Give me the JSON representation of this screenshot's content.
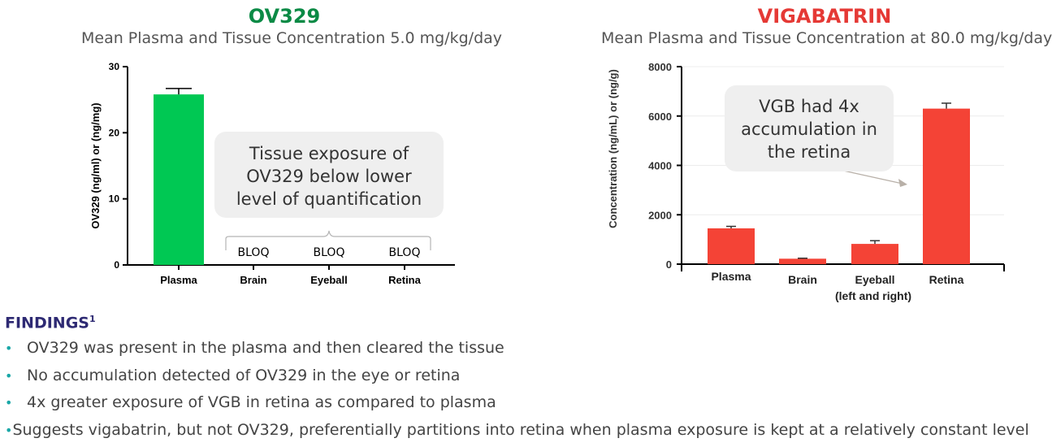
{
  "chart_data": [
    {
      "type": "bar",
      "title": "OV329",
      "subtitle": "Mean Plasma and Tissue Concentration 5.0 mg/kg/day",
      "ylabel": "OV329 (ng/ml) or (ng/mg)",
      "xlabel": "",
      "categories": [
        "Plasma",
        "Brain",
        "Eyeball",
        "Retina"
      ],
      "values": [
        25.8,
        null,
        null,
        null
      ],
      "errors": [
        0.9,
        null,
        null,
        null
      ],
      "value_labels": [
        "",
        "BLOQ",
        "BLOQ",
        "BLOQ"
      ],
      "ylim": [
        0,
        30
      ],
      "yticks": [
        0,
        10,
        20,
        30
      ],
      "bar_color": "#00c853",
      "title_color": "#0a8a45",
      "annotation": "Tissue exposure of OV329 below lower level of quantification",
      "annotation_lines": [
        "Tissue exposure of",
        "OV329 below lower",
        "level of quantification"
      ],
      "grid": false
    },
    {
      "type": "bar",
      "title": "VIGABATRIN",
      "subtitle": "Mean Plasma and Tissue Concentration at 80.0 mg/kg/day",
      "ylabel": "Concentration (ng/mL) or (ng/g)",
      "xlabel": "",
      "categories": [
        "Plasma",
        "Brain",
        "Eyeball",
        "Retina"
      ],
      "category_sublabels": [
        "",
        "",
        "(left and right)",
        ""
      ],
      "values": [
        1450,
        220,
        820,
        6300
      ],
      "errors": [
        80,
        20,
        130,
        220
      ],
      "ylim": [
        0,
        8000
      ],
      "yticks": [
        0,
        2000,
        4000,
        6000,
        8000
      ],
      "bar_color": "#f44336",
      "title_color": "#e53935",
      "annotation": "VGB had 4x accumulation in the retina",
      "annotation_lines": [
        "VGB had 4x",
        "accumulation in",
        "the retina"
      ],
      "grid": true
    }
  ],
  "findings": {
    "heading": "FINDINGS",
    "superscript": "1",
    "bullet_color": "#1aa7a7",
    "items": [
      "OV329 was present in the plasma and then cleared the tissue",
      "No accumulation detected of OV329 in the eye or retina",
      "4x greater exposure of VGB in retina as compared to plasma",
      "Suggests vigabatrin, but not OV329, preferentially partitions into retina when plasma exposure is kept at a relatively constant level"
    ]
  }
}
